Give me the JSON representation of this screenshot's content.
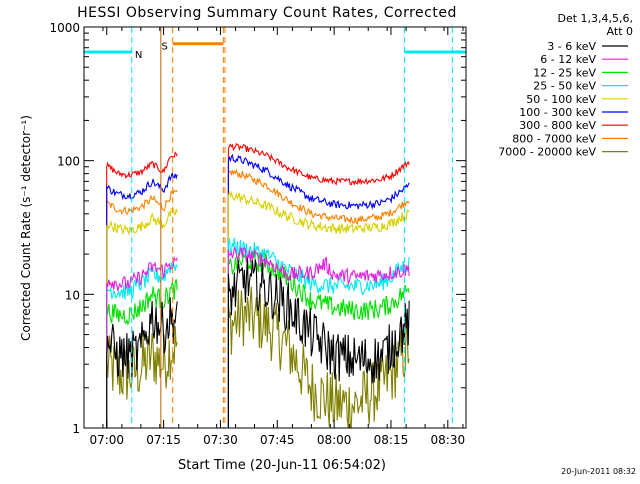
{
  "chart_data": {
    "type": "line",
    "title": "HESSI Observing Summary Count Rates, Corrected",
    "xlabel": "Start Time (20-Jun-11 06:54:02)",
    "ylabel": "Corrected Count Rate (s⁻¹ detector⁻¹)",
    "yscale": "log",
    "xlim": [
      6.9,
      8.58
    ],
    "ylim": [
      1,
      1000
    ],
    "x_tick_labels": [
      "07:00",
      "07:15",
      "07:30",
      "07:45",
      "08:00",
      "08:15",
      "08:30"
    ],
    "x_ticks_hours": [
      7.0,
      7.25,
      7.5,
      7.75,
      8.0,
      8.25,
      8.5
    ],
    "y_tick_labels": [
      "1",
      "10",
      "100",
      "1000"
    ],
    "y_ticks": [
      1,
      10,
      100,
      1000
    ],
    "legend_header": [
      "Det 1,3,4,5,6,",
      "Att 0"
    ],
    "legend_position": "right",
    "series": [
      {
        "name": "3 - 6 keV",
        "color": "#000000",
        "base": 3.3,
        "noise": 0.2,
        "data": [
          [
            7.0,
            4.5
          ],
          [
            7.05,
            3.5
          ],
          [
            7.1,
            3.4
          ],
          [
            7.15,
            3.8
          ],
          [
            7.2,
            7
          ],
          [
            7.25,
            5.5
          ],
          [
            7.28,
            6.5
          ],
          [
            7.55,
            10
          ],
          [
            7.6,
            13
          ],
          [
            7.7,
            11
          ],
          [
            7.8,
            8
          ],
          [
            7.9,
            5
          ],
          [
            8.0,
            3.5
          ],
          [
            8.1,
            3.2
          ],
          [
            8.2,
            3.3
          ],
          [
            8.25,
            4
          ],
          [
            8.3,
            5.5
          ],
          [
            8.33,
            6
          ]
        ]
      },
      {
        "name": "6 - 12 keV",
        "color": "#e020e0",
        "base": 13,
        "noise": 0.06,
        "data": [
          [
            7.0,
            13
          ],
          [
            7.05,
            12
          ],
          [
            7.1,
            12
          ],
          [
            7.15,
            13.5
          ],
          [
            7.2,
            16
          ],
          [
            7.25,
            15
          ],
          [
            7.28,
            17
          ],
          [
            7.55,
            20
          ],
          [
            7.6,
            20
          ],
          [
            7.7,
            18
          ],
          [
            7.8,
            14
          ],
          [
            7.9,
            14.5
          ],
          [
            7.96,
            17
          ],
          [
            8.0,
            14
          ],
          [
            8.1,
            13.5
          ],
          [
            8.2,
            14
          ],
          [
            8.25,
            14.5
          ],
          [
            8.3,
            15
          ],
          [
            8.33,
            15.5
          ]
        ]
      },
      {
        "name": "12 - 25 keV",
        "color": "#00e000",
        "base": 7,
        "noise": 0.08,
        "data": [
          [
            7.0,
            7.5
          ],
          [
            7.05,
            7
          ],
          [
            7.1,
            7
          ],
          [
            7.15,
            8
          ],
          [
            7.2,
            10
          ],
          [
            7.25,
            9
          ],
          [
            7.28,
            10.5
          ],
          [
            7.55,
            16
          ],
          [
            7.6,
            18
          ],
          [
            7.7,
            17
          ],
          [
            7.8,
            13
          ],
          [
            7.9,
            9
          ],
          [
            8.0,
            8
          ],
          [
            8.1,
            7.5
          ],
          [
            8.2,
            7.8
          ],
          [
            8.25,
            8.5
          ],
          [
            8.3,
            10
          ],
          [
            8.33,
            11
          ]
        ]
      },
      {
        "name": "25 - 50 keV",
        "color": "#00e8f0",
        "base": 11,
        "noise": 0.07,
        "data": [
          [
            7.0,
            11
          ],
          [
            7.05,
            10.5
          ],
          [
            7.1,
            10.5
          ],
          [
            7.15,
            12
          ],
          [
            7.2,
            14
          ],
          [
            7.25,
            13.5
          ],
          [
            7.28,
            16.5
          ],
          [
            7.55,
            23
          ],
          [
            7.6,
            22
          ],
          [
            7.7,
            20
          ],
          [
            7.8,
            15
          ],
          [
            7.9,
            12
          ],
          [
            8.0,
            11.5
          ],
          [
            8.1,
            11.5
          ],
          [
            8.2,
            12
          ],
          [
            8.25,
            13.5
          ],
          [
            8.3,
            16
          ],
          [
            8.33,
            17
          ]
        ]
      },
      {
        "name": "50 - 100 keV",
        "color": "#d8d000",
        "base": 30,
        "noise": 0.04,
        "data": [
          [
            7.0,
            34
          ],
          [
            7.05,
            31
          ],
          [
            7.1,
            30
          ],
          [
            7.15,
            32
          ],
          [
            7.2,
            37
          ],
          [
            7.25,
            33
          ],
          [
            7.28,
            40
          ],
          [
            7.55,
            55
          ],
          [
            7.6,
            52
          ],
          [
            7.7,
            46
          ],
          [
            7.8,
            38
          ],
          [
            7.9,
            33
          ],
          [
            8.0,
            31
          ],
          [
            8.1,
            31
          ],
          [
            8.2,
            32
          ],
          [
            8.25,
            34
          ],
          [
            8.3,
            38
          ],
          [
            8.33,
            40
          ]
        ]
      },
      {
        "name": "100 - 300 keV",
        "color": "#0000ff",
        "base": 50,
        "noise": 0.03,
        "data": [
          [
            7.0,
            63
          ],
          [
            7.05,
            56
          ],
          [
            7.1,
            55
          ],
          [
            7.15,
            58
          ],
          [
            7.2,
            70
          ],
          [
            7.25,
            60
          ],
          [
            7.28,
            75
          ],
          [
            7.55,
            105
          ],
          [
            7.6,
            100
          ],
          [
            7.7,
            85
          ],
          [
            7.8,
            65
          ],
          [
            7.9,
            52
          ],
          [
            8.0,
            47
          ],
          [
            8.1,
            46
          ],
          [
            8.2,
            48
          ],
          [
            8.25,
            52
          ],
          [
            8.3,
            60
          ],
          [
            8.33,
            66
          ]
        ]
      },
      {
        "name": "300 - 800 keV",
        "color": "#ff0000",
        "base": 70,
        "noise": 0.025,
        "data": [
          [
            7.0,
            92
          ],
          [
            7.05,
            80
          ],
          [
            7.1,
            78
          ],
          [
            7.15,
            82
          ],
          [
            7.2,
            95
          ],
          [
            7.25,
            82
          ],
          [
            7.28,
            108
          ],
          [
            7.55,
            128
          ],
          [
            7.6,
            125
          ],
          [
            7.7,
            110
          ],
          [
            7.8,
            88
          ],
          [
            7.9,
            74
          ],
          [
            8.0,
            70
          ],
          [
            8.1,
            70
          ],
          [
            8.2,
            72
          ],
          [
            8.25,
            77
          ],
          [
            8.3,
            90
          ],
          [
            8.33,
            98
          ]
        ]
      },
      {
        "name": "800 - 7000 keV",
        "color": "#ff8000",
        "base": 35,
        "noise": 0.03,
        "data": [
          [
            7.0,
            48
          ],
          [
            7.05,
            43
          ],
          [
            7.1,
            42
          ],
          [
            7.15,
            45
          ],
          [
            7.2,
            52
          ],
          [
            7.25,
            44
          ],
          [
            7.28,
            55
          ],
          [
            7.55,
            82
          ],
          [
            7.6,
            78
          ],
          [
            7.7,
            66
          ],
          [
            7.8,
            50
          ],
          [
            7.9,
            40
          ],
          [
            8.0,
            37
          ],
          [
            8.1,
            36
          ],
          [
            8.2,
            38
          ],
          [
            8.25,
            41
          ],
          [
            8.3,
            47
          ],
          [
            8.33,
            52
          ]
        ]
      },
      {
        "name": "7000 - 20000 keV",
        "color": "#808000",
        "base": 2,
        "noise": 0.25,
        "data": [
          [
            7.0,
            3
          ],
          [
            7.05,
            2.5
          ],
          [
            7.1,
            2.5
          ],
          [
            7.15,
            2.8
          ],
          [
            7.2,
            3.5
          ],
          [
            7.25,
            3
          ],
          [
            7.28,
            4
          ],
          [
            7.55,
            6
          ],
          [
            7.6,
            7
          ],
          [
            7.7,
            6
          ],
          [
            7.8,
            4
          ],
          [
            7.9,
            2
          ],
          [
            8.0,
            1.5
          ],
          [
            8.1,
            1.5
          ],
          [
            8.2,
            2
          ],
          [
            8.25,
            2.5
          ],
          [
            8.3,
            3.5
          ],
          [
            8.33,
            4
          ]
        ]
      }
    ],
    "data_gaps": [
      [
        7.31,
        7.535
      ]
    ],
    "annotations": [
      {
        "label": "N",
        "color": "#00e8f0",
        "kind": "night",
        "intervals": [
          [
            6.9,
            7.11
          ],
          [
            8.31,
            8.58
          ]
        ],
        "level": 650,
        "lines": [
          7.11,
          8.31,
          8.52
        ]
      },
      {
        "label": "S",
        "color": "#ff8000",
        "kind": "saa",
        "intervals": [
          [
            7.29,
            7.513
          ]
        ],
        "level": 750,
        "lines": [
          7.29,
          7.513
        ]
      },
      {
        "label": "",
        "color": "#ff8000",
        "kind": "marker",
        "lines": [
          7.52
        ]
      },
      {
        "label": "",
        "color": "#c06000",
        "kind": "marker",
        "lines": [
          7.238
        ]
      }
    ],
    "grid": false
  },
  "footer": {
    "timestamp": "20-Jun-2011 08:32"
  }
}
